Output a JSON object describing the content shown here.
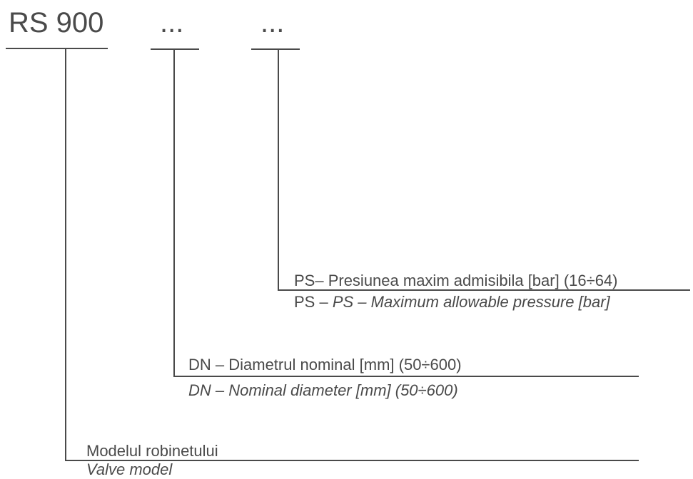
{
  "codes": {
    "model": "RS  900",
    "dn": "...",
    "ps": "..."
  },
  "fields": {
    "ps": {
      "ro": "PS– Presiunea maxim admisibila [bar] (16÷64)",
      "en_prefix": "PS – ",
      "en_italic": "PS – Maximum allowable pressure [bar]"
    },
    "dn": {
      "ro": "DN – Diametrul nominal [mm] (50÷600)",
      "en": "DN – Nominal diameter [mm] (50÷600)"
    },
    "model": {
      "ro": "Modelul robinetului",
      "en": "Valve model"
    }
  }
}
